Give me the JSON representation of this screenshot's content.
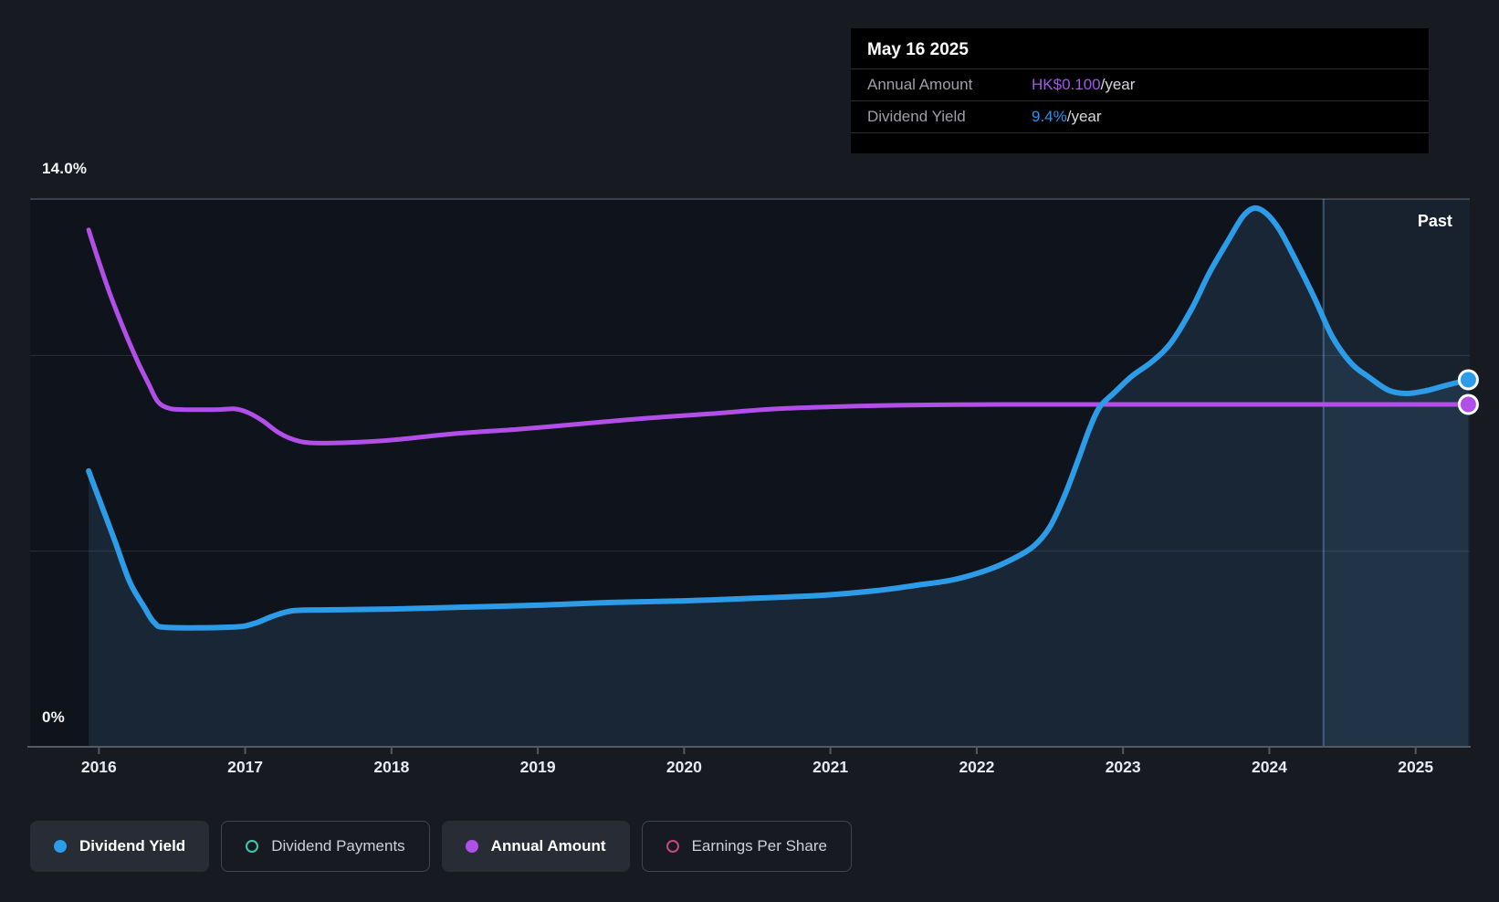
{
  "tooltip": {
    "title": "May 16 2025",
    "rows": [
      {
        "label": "Annual Amount",
        "value": "HK$0.100",
        "suffix": "/year",
        "color": "#a356f0"
      },
      {
        "label": "Dividend Yield",
        "value": "9.4%",
        "suffix": "/year",
        "color": "#2196f3"
      }
    ]
  },
  "legend": {
    "items": [
      {
        "label": "Dividend Yield",
        "color": "#2d9ce8",
        "filled": true,
        "active": true
      },
      {
        "label": "Dividend Payments",
        "color": "#40c8b2",
        "filled": false,
        "active": false
      },
      {
        "label": "Annual Amount",
        "color": "#b24fe9",
        "filled": true,
        "active": true
      },
      {
        "label": "Earnings Per Share",
        "color": "#c4497f",
        "filled": false,
        "active": false
      }
    ]
  },
  "chart_data": {
    "type": "line",
    "xlim": [
      2015.53,
      2025.37
    ],
    "ylim": [
      0,
      14
    ],
    "y2lim": [
      0,
      0.16
    ],
    "x_ticks": [
      "2016",
      "2017",
      "2018",
      "2019",
      "2020",
      "2021",
      "2022",
      "2023",
      "2024",
      "2025"
    ],
    "x_tick_years": [
      2016,
      2017,
      2018,
      2019,
      2020,
      2021,
      2022,
      2023,
      2024,
      2025
    ],
    "y_gridlines_pct": [
      5,
      10,
      14
    ],
    "y_axis_top_label": "14.0%",
    "y_axis_bottom_label": "0%",
    "grid": "horizontal-only",
    "legend_position": "bottom-left",
    "past_label": "Past",
    "past_band_start": 2024.37,
    "colors": {
      "dividend_yield": "#2d9ce8",
      "annual_amount": "#b24fe9",
      "area_fill": "rgba(70,125,180,0.18)",
      "past_band": "rgba(110,165,220,0.10)",
      "past_divider": "rgba(125,175,225,0.38)",
      "gridline": "#2b313b",
      "gridline_top": "#3a414b",
      "axis": "#555a62",
      "plot_bg": "#0f131b"
    },
    "series": [
      {
        "name": "Dividend Yield",
        "axis": "pct",
        "unit": "%",
        "color": "#2d9ce8",
        "area": true,
        "end_marker": true,
        "end_value": 9.4,
        "points": [
          [
            2015.93,
            7.05
          ],
          [
            2016.01,
            6.25
          ],
          [
            2016.11,
            5.25
          ],
          [
            2016.21,
            4.22
          ],
          [
            2016.31,
            3.57
          ],
          [
            2016.38,
            3.17
          ],
          [
            2016.47,
            3.05
          ],
          [
            2016.91,
            3.06
          ],
          [
            2017.06,
            3.15
          ],
          [
            2017.19,
            3.34
          ],
          [
            2017.33,
            3.48
          ],
          [
            2017.57,
            3.5
          ],
          [
            2018.0,
            3.52
          ],
          [
            2018.5,
            3.57
          ],
          [
            2019.0,
            3.62
          ],
          [
            2019.5,
            3.69
          ],
          [
            2020.0,
            3.73
          ],
          [
            2020.5,
            3.8
          ],
          [
            2020.94,
            3.87
          ],
          [
            2021.31,
            3.99
          ],
          [
            2021.59,
            4.13
          ],
          [
            2021.84,
            4.27
          ],
          [
            2022.08,
            4.53
          ],
          [
            2022.25,
            4.81
          ],
          [
            2022.39,
            5.13
          ],
          [
            2022.5,
            5.62
          ],
          [
            2022.6,
            6.42
          ],
          [
            2022.69,
            7.3
          ],
          [
            2022.77,
            8.12
          ],
          [
            2022.84,
            8.68
          ],
          [
            2022.94,
            9.05
          ],
          [
            2023.06,
            9.47
          ],
          [
            2023.2,
            9.85
          ],
          [
            2023.33,
            10.34
          ],
          [
            2023.47,
            11.2
          ],
          [
            2023.59,
            12.11
          ],
          [
            2023.72,
            12.95
          ],
          [
            2023.82,
            13.56
          ],
          [
            2023.9,
            13.77
          ],
          [
            2023.98,
            13.63
          ],
          [
            2024.07,
            13.21
          ],
          [
            2024.18,
            12.44
          ],
          [
            2024.31,
            11.46
          ],
          [
            2024.43,
            10.48
          ],
          [
            2024.56,
            9.8
          ],
          [
            2024.68,
            9.45
          ],
          [
            2024.81,
            9.12
          ],
          [
            2024.93,
            9.03
          ],
          [
            2025.07,
            9.1
          ],
          [
            2025.21,
            9.24
          ],
          [
            2025.36,
            9.38
          ]
        ]
      },
      {
        "name": "Annual Amount",
        "axis": "amt",
        "unit": "HK$/year",
        "color": "#b24fe9",
        "area": false,
        "end_marker": true,
        "end_value": 0.1,
        "points": [
          [
            2015.93,
            0.151
          ],
          [
            2015.99,
            0.143
          ],
          [
            2016.07,
            0.133
          ],
          [
            2016.16,
            0.123
          ],
          [
            2016.26,
            0.113
          ],
          [
            2016.34,
            0.106
          ],
          [
            2016.4,
            0.101
          ],
          [
            2016.47,
            0.099
          ],
          [
            2016.57,
            0.0985
          ],
          [
            2016.82,
            0.0985
          ],
          [
            2016.93,
            0.0987
          ],
          [
            2017.02,
            0.0976
          ],
          [
            2017.12,
            0.0952
          ],
          [
            2017.22,
            0.092
          ],
          [
            2017.32,
            0.0899
          ],
          [
            2017.44,
            0.0888
          ],
          [
            2017.66,
            0.0888
          ],
          [
            2018.0,
            0.0896
          ],
          [
            2018.44,
            0.0915
          ],
          [
            2018.88,
            0.0928
          ],
          [
            2019.31,
            0.0944
          ],
          [
            2019.75,
            0.096
          ],
          [
            2020.19,
            0.0973
          ],
          [
            2020.62,
            0.0987
          ],
          [
            2021.0,
            0.0993
          ],
          [
            2021.37,
            0.0997
          ],
          [
            2021.75,
            0.0999
          ],
          [
            2022.19,
            0.1
          ],
          [
            2023.0,
            0.1
          ],
          [
            2024.0,
            0.1
          ],
          [
            2025.36,
            0.1
          ]
        ]
      }
    ]
  }
}
